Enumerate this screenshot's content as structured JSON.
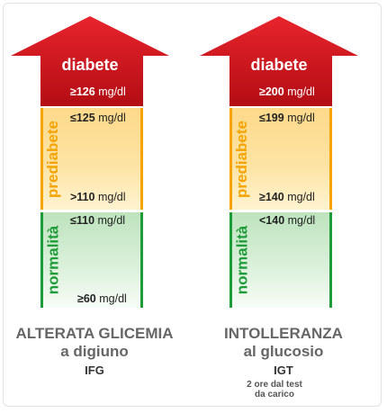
{
  "left": {
    "arrow_label": "diabete",
    "arrow_value": "≥126",
    "arrow_unit": "mg/dl",
    "pre_label": "prediabete",
    "pre_top_value": "≤125",
    "pre_top_unit": "mg/dl",
    "pre_bottom_value": ">110",
    "pre_bottom_unit": "mg/dl",
    "norm_label": "normalità",
    "norm_top_value": "≤110",
    "norm_top_unit": "mg/dl",
    "norm_bottom_value": "≥60",
    "norm_bottom_unit": "mg/dl",
    "title_line1": "ALTERATA GLICEMIA",
    "title_line2": "a digiuno",
    "abbr": "IFG"
  },
  "right": {
    "arrow_label": "diabete",
    "arrow_value": "≥200",
    "arrow_unit": "mg/dl",
    "pre_label": "prediabete",
    "pre_top_value": "≤199",
    "pre_top_unit": "mg/dl",
    "pre_bottom_value": "≥140",
    "pre_bottom_unit": "mg/dl",
    "norm_label": "normalità",
    "norm_top_value": "<140",
    "norm_top_unit": "mg/dl",
    "title_line1": "INTOLLERANZA",
    "title_line2": "al glucosio",
    "abbr": "IGT",
    "note_line1": "2 ore dal test",
    "note_line2": "da carico"
  },
  "colors": {
    "diabete": "#d0121b",
    "prediabete": "#f5a300",
    "normalita": "#1f9c3a"
  }
}
